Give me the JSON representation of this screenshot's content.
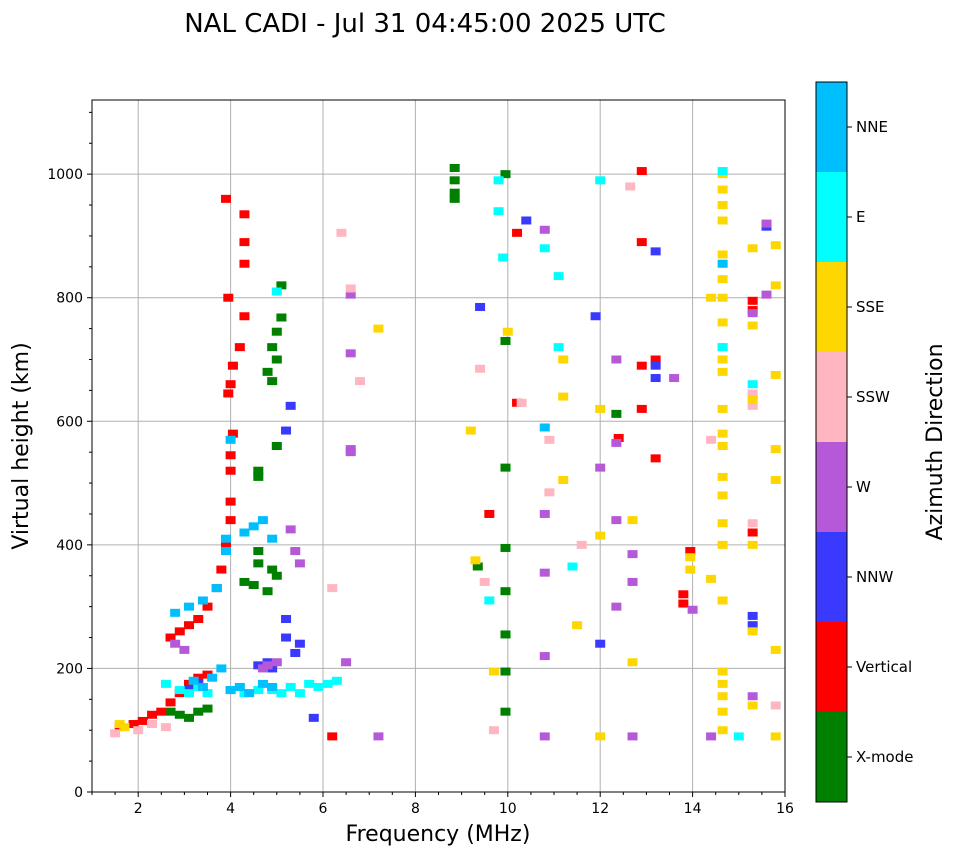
{
  "chart_data": {
    "type": "scatter",
    "title": "NAL CADI - Jul 31 04:45:00 2025 UTC",
    "xlabel": "Frequency (MHz)",
    "ylabel": "Virtual height (km)",
    "xlim": [
      1,
      16
    ],
    "ylim": [
      0,
      1120
    ],
    "xticks": [
      2,
      4,
      6,
      8,
      10,
      12,
      14,
      16
    ],
    "yticks": [
      0,
      200,
      400,
      600,
      800,
      1000
    ],
    "grid": true,
    "colorbar": {
      "label": "Azimuth Direction",
      "categories": [
        {
          "name": "X-mode",
          "color": "#008000"
        },
        {
          "name": "Vertical",
          "color": "#ff0000"
        },
        {
          "name": "NNW",
          "color": "#3a3aff"
        },
        {
          "name": "W",
          "color": "#b659d8"
        },
        {
          "name": "SSW",
          "color": "#ffb6c1"
        },
        {
          "name": "SSE",
          "color": "#ffd700"
        },
        {
          "name": "E",
          "color": "#00ffff"
        },
        {
          "name": "NNE",
          "color": "#00bfff"
        }
      ]
    },
    "series": [
      {
        "name": "X-mode",
        "points": [
          [
            2.7,
            130
          ],
          [
            2.9,
            125
          ],
          [
            3.1,
            120
          ],
          [
            3.3,
            130
          ],
          [
            3.5,
            135
          ],
          [
            4.3,
            340
          ],
          [
            4.5,
            335
          ],
          [
            4.6,
            370
          ],
          [
            4.6,
            390
          ],
          [
            4.8,
            325
          ],
          [
            4.9,
            360
          ],
          [
            5.0,
            350
          ],
          [
            4.6,
            520
          ],
          [
            4.6,
            510
          ],
          [
            5.0,
            560
          ],
          [
            4.8,
            680
          ],
          [
            4.9,
            665
          ],
          [
            5.0,
            700
          ],
          [
            4.9,
            720
          ],
          [
            5.0,
            745
          ],
          [
            5.1,
            768
          ],
          [
            5.1,
            820
          ],
          [
            8.85,
            1010
          ],
          [
            8.85,
            990
          ],
          [
            8.85,
            970
          ],
          [
            8.85,
            960
          ],
          [
            9.95,
            1000
          ],
          [
            9.95,
            730
          ],
          [
            9.95,
            525
          ],
          [
            9.95,
            395
          ],
          [
            9.95,
            325
          ],
          [
            9.95,
            255
          ],
          [
            9.95,
            195
          ],
          [
            9.95,
            130
          ],
          [
            9.35,
            365
          ],
          [
            12.35,
            612
          ]
        ]
      },
      {
        "name": "Vertical",
        "points": [
          [
            1.6,
            105
          ],
          [
            1.9,
            110
          ],
          [
            2.1,
            115
          ],
          [
            2.3,
            125
          ],
          [
            2.5,
            130
          ],
          [
            2.7,
            145
          ],
          [
            2.9,
            160
          ],
          [
            3.1,
            175
          ],
          [
            3.3,
            185
          ],
          [
            3.5,
            190
          ],
          [
            2.7,
            250
          ],
          [
            2.9,
            260
          ],
          [
            3.1,
            270
          ],
          [
            3.3,
            280
          ],
          [
            3.5,
            300
          ],
          [
            3.7,
            330
          ],
          [
            3.8,
            360
          ],
          [
            3.9,
            400
          ],
          [
            4.0,
            440
          ],
          [
            4.0,
            470
          ],
          [
            4.0,
            520
          ],
          [
            4.0,
            545
          ],
          [
            4.05,
            580
          ],
          [
            3.95,
            645
          ],
          [
            4.0,
            660
          ],
          [
            4.05,
            690
          ],
          [
            4.2,
            720
          ],
          [
            4.3,
            770
          ],
          [
            4.3,
            855
          ],
          [
            4.3,
            890
          ],
          [
            4.3,
            935
          ],
          [
            3.9,
            960
          ],
          [
            3.95,
            800
          ],
          [
            6.2,
            90
          ],
          [
            9.6,
            450
          ],
          [
            10.2,
            630
          ],
          [
            10.2,
            905
          ],
          [
            12.9,
            1005
          ],
          [
            12.9,
            890
          ],
          [
            12.9,
            690
          ],
          [
            12.9,
            620
          ],
          [
            13.2,
            700
          ],
          [
            13.2,
            540
          ],
          [
            12.4,
            573
          ],
          [
            13.8,
            320
          ],
          [
            13.8,
            305
          ],
          [
            13.95,
            390
          ],
          [
            15.3,
            795
          ],
          [
            15.3,
            780
          ],
          [
            15.3,
            420
          ]
        ]
      },
      {
        "name": "NNW",
        "points": [
          [
            3.1,
            165
          ],
          [
            3.3,
            175
          ],
          [
            4.6,
            205
          ],
          [
            4.8,
            210
          ],
          [
            4.9,
            200
          ],
          [
            5.2,
            280
          ],
          [
            5.2,
            250
          ],
          [
            5.3,
            625
          ],
          [
            5.2,
            585
          ],
          [
            5.4,
            225
          ],
          [
            5.5,
            240
          ],
          [
            5.8,
            120
          ],
          [
            9.4,
            785
          ],
          [
            10.4,
            925
          ],
          [
            12.0,
            240
          ],
          [
            11.9,
            770
          ],
          [
            13.2,
            875
          ],
          [
            13.2,
            690
          ],
          [
            13.2,
            670
          ],
          [
            15.3,
            285
          ],
          [
            15.3,
            270
          ],
          [
            15.6,
            915
          ]
        ]
      },
      {
        "name": "W",
        "points": [
          [
            2.8,
            240
          ],
          [
            3.0,
            230
          ],
          [
            4.7,
            200
          ],
          [
            4.8,
            205
          ],
          [
            5.0,
            210
          ],
          [
            5.4,
            390
          ],
          [
            5.5,
            370
          ],
          [
            5.3,
            425
          ],
          [
            6.5,
            210
          ],
          [
            6.6,
            805
          ],
          [
            6.6,
            710
          ],
          [
            6.6,
            555
          ],
          [
            6.6,
            550
          ],
          [
            7.2,
            90
          ],
          [
            10.8,
            910
          ],
          [
            10.8,
            450
          ],
          [
            10.8,
            355
          ],
          [
            10.8,
            220
          ],
          [
            10.8,
            90
          ],
          [
            12.0,
            525
          ],
          [
            12.35,
            700
          ],
          [
            12.35,
            440
          ],
          [
            12.35,
            300
          ],
          [
            12.35,
            565
          ],
          [
            12.7,
            385
          ],
          [
            12.7,
            340
          ],
          [
            12.7,
            90
          ],
          [
            13.6,
            670
          ],
          [
            14.0,
            295
          ],
          [
            14.4,
            90
          ],
          [
            15.3,
            775
          ],
          [
            15.3,
            155
          ],
          [
            15.6,
            920
          ],
          [
            15.6,
            805
          ]
        ]
      },
      {
        "name": "SSW",
        "points": [
          [
            1.5,
            95
          ],
          [
            2.0,
            100
          ],
          [
            2.3,
            110
          ],
          [
            2.6,
            105
          ],
          [
            6.2,
            330
          ],
          [
            6.4,
            905
          ],
          [
            6.6,
            815
          ],
          [
            6.8,
            665
          ],
          [
            9.4,
            685
          ],
          [
            9.5,
            340
          ],
          [
            9.7,
            100
          ],
          [
            10.3,
            630
          ],
          [
            10.9,
            570
          ],
          [
            10.9,
            485
          ],
          [
            11.6,
            400
          ],
          [
            12.65,
            980
          ],
          [
            14.4,
            570
          ],
          [
            15.3,
            645
          ],
          [
            15.3,
            625
          ],
          [
            15.3,
            435
          ],
          [
            15.8,
            140
          ]
        ]
      },
      {
        "name": "SSE",
        "points": [
          [
            1.6,
            110
          ],
          [
            1.7,
            105
          ],
          [
            7.2,
            750
          ],
          [
            9.2,
            585
          ],
          [
            9.3,
            375
          ],
          [
            9.7,
            195
          ],
          [
            10.0,
            745
          ],
          [
            11.2,
            700
          ],
          [
            11.2,
            640
          ],
          [
            11.2,
            505
          ],
          [
            11.5,
            270
          ],
          [
            12.0,
            620
          ],
          [
            12.0,
            415
          ],
          [
            12.0,
            90
          ],
          [
            12.7,
            440
          ],
          [
            12.7,
            210
          ],
          [
            13.95,
            380
          ],
          [
            13.95,
            360
          ],
          [
            14.4,
            345
          ],
          [
            14.4,
            800
          ],
          [
            14.65,
            1000
          ],
          [
            14.65,
            975
          ],
          [
            14.65,
            950
          ],
          [
            14.65,
            925
          ],
          [
            14.65,
            870
          ],
          [
            14.65,
            830
          ],
          [
            14.65,
            800
          ],
          [
            14.65,
            760
          ],
          [
            14.65,
            720
          ],
          [
            14.65,
            700
          ],
          [
            14.65,
            680
          ],
          [
            14.65,
            620
          ],
          [
            14.65,
            580
          ],
          [
            14.65,
            560
          ],
          [
            14.65,
            510
          ],
          [
            14.65,
            480
          ],
          [
            14.65,
            435
          ],
          [
            14.65,
            400
          ],
          [
            14.65,
            310
          ],
          [
            14.65,
            195
          ],
          [
            14.65,
            175
          ],
          [
            14.65,
            155
          ],
          [
            14.65,
            130
          ],
          [
            14.65,
            100
          ],
          [
            15.3,
            880
          ],
          [
            15.3,
            755
          ],
          [
            15.3,
            635
          ],
          [
            15.3,
            400
          ],
          [
            15.3,
            260
          ],
          [
            15.3,
            140
          ],
          [
            15.8,
            885
          ],
          [
            15.8,
            820
          ],
          [
            15.8,
            675
          ],
          [
            15.8,
            555
          ],
          [
            15.8,
            505
          ],
          [
            15.8,
            230
          ],
          [
            15.8,
            90
          ]
        ]
      },
      {
        "name": "E",
        "points": [
          [
            2.6,
            175
          ],
          [
            2.9,
            165
          ],
          [
            3.1,
            160
          ],
          [
            3.3,
            170
          ],
          [
            3.5,
            160
          ],
          [
            4.0,
            165
          ],
          [
            4.3,
            160
          ],
          [
            4.6,
            165
          ],
          [
            4.9,
            165
          ],
          [
            5.1,
            160
          ],
          [
            5.3,
            170
          ],
          [
            5.5,
            160
          ],
          [
            5.7,
            175
          ],
          [
            5.9,
            170
          ],
          [
            6.1,
            175
          ],
          [
            6.3,
            180
          ],
          [
            5.0,
            810
          ],
          [
            9.6,
            310
          ],
          [
            9.8,
            990
          ],
          [
            9.8,
            940
          ],
          [
            9.9,
            865
          ],
          [
            10.8,
            880
          ],
          [
            11.1,
            835
          ],
          [
            11.1,
            720
          ],
          [
            11.4,
            365
          ],
          [
            12.0,
            990
          ],
          [
            14.65,
            1005
          ],
          [
            14.65,
            720
          ],
          [
            15.0,
            90
          ],
          [
            15.3,
            660
          ]
        ]
      },
      {
        "name": "NNE",
        "points": [
          [
            3.2,
            180
          ],
          [
            3.4,
            170
          ],
          [
            3.6,
            185
          ],
          [
            3.8,
            200
          ],
          [
            4.0,
            165
          ],
          [
            4.2,
            170
          ],
          [
            4.4,
            160
          ],
          [
            4.7,
            175
          ],
          [
            4.9,
            170
          ],
          [
            2.8,
            290
          ],
          [
            3.1,
            300
          ],
          [
            3.4,
            310
          ],
          [
            3.7,
            330
          ],
          [
            3.9,
            390
          ],
          [
            3.9,
            410
          ],
          [
            4.0,
            570
          ],
          [
            4.3,
            420
          ],
          [
            4.5,
            430
          ],
          [
            4.7,
            440
          ],
          [
            4.9,
            410
          ],
          [
            10.8,
            590
          ],
          [
            14.65,
            855
          ]
        ]
      }
    ]
  }
}
